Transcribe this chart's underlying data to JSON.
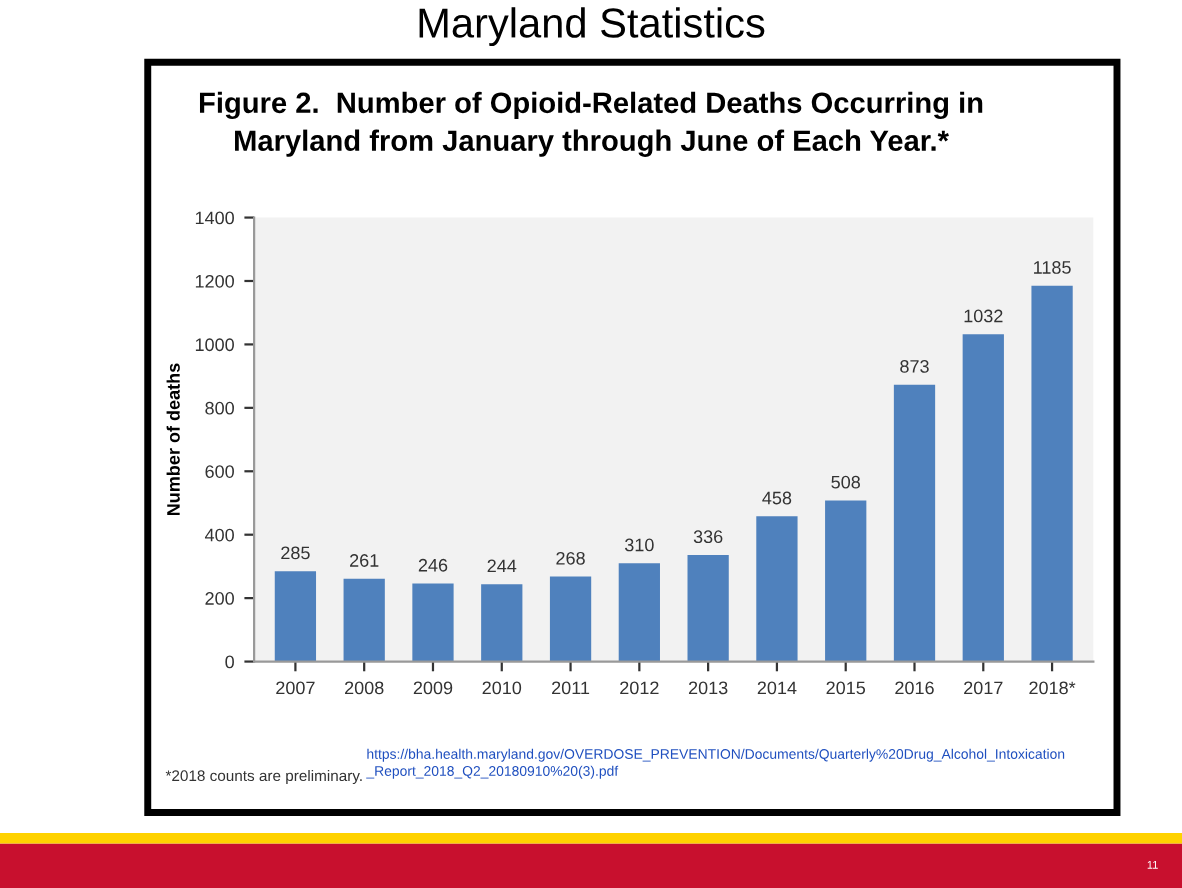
{
  "chart_data": {
    "type": "bar",
    "title": "Maryland Statistics",
    "subtitle": "Figure 2.  Number of Opioid-Related Deaths Occurring in\nMaryland from January through June of Each Year.*",
    "ylabel": "Number of deaths",
    "categories": [
      "2007",
      "2008",
      "2009",
      "2010",
      "2011",
      "2012",
      "2013",
      "2014",
      "2015",
      "2016",
      "2017",
      "2018*"
    ],
    "values": [
      285,
      261,
      246,
      244,
      268,
      310,
      336,
      458,
      508,
      873,
      1032,
      1185
    ],
    "color": "#4f81bd",
    "ylim": [
      0,
      1400
    ],
    "yticks": [
      0,
      200,
      400,
      600,
      800,
      1000,
      1200,
      1400
    ],
    "grid": false,
    "data_labels": true,
    "annotations": [
      "*2018 counts are preliminary.",
      "https://bha.health.maryland.gov/OVERDOSE_PREVENTION/Documents/Quarterly%20Drug_Alcohol_Intoxication\n_Report_2018_Q2_20180910%20(3).pdf",
      "11"
    ]
  }
}
